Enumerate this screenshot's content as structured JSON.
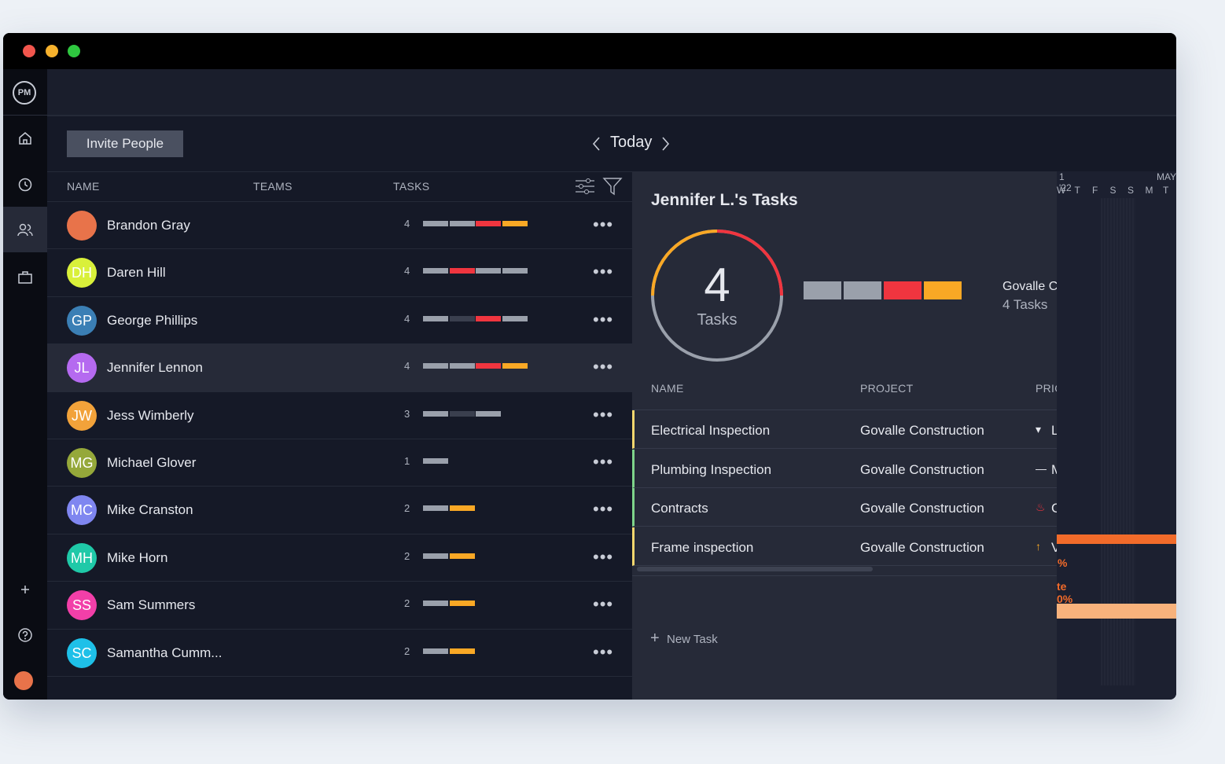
{
  "window": {
    "controls": [
      "#f2564d",
      "#f7b22d",
      "#2fc840"
    ]
  },
  "sidebar": {
    "logo": "PM"
  },
  "toolbar": {
    "invite_button": "Invite People",
    "date_nav": "Today"
  },
  "people_table": {
    "columns": [
      "NAME",
      "TEAMS",
      "TASKS"
    ],
    "rows": [
      {
        "initials": null,
        "color": "#e8734a",
        "name": "Brandon Gray",
        "tasks": 4,
        "segments": [
          "#9aa0ab",
          "#9aa0ab",
          "#f0353f",
          "#f9a825"
        ]
      },
      {
        "initials": "DH",
        "color": "#d9f03a",
        "name": "Daren Hill",
        "tasks": 4,
        "segments": [
          "#9aa0ab",
          "#f0353f",
          "#9aa0ab",
          "#9aa0ab"
        ]
      },
      {
        "initials": "GP",
        "color": "#3b7fb5",
        "name": "George Phillips",
        "tasks": 4,
        "segments": [
          "#9aa0ab",
          "#3a3f4e",
          "#f0353f",
          "#9aa0ab"
        ]
      },
      {
        "initials": "JL",
        "color": "#b56af0",
        "name": "Jennifer Lennon",
        "tasks": 4,
        "segments": [
          "#9aa0ab",
          "#9aa0ab",
          "#f0353f",
          "#f9a825"
        ]
      },
      {
        "initials": "JW",
        "color": "#f2a23a",
        "name": "Jess Wimberly",
        "tasks": 3,
        "segments": [
          "#9aa0ab",
          "#3a3f4e",
          "#9aa0ab"
        ]
      },
      {
        "initials": "MG",
        "color": "#95a83a",
        "name": "Michael Glover",
        "tasks": 1,
        "segments": [
          "#9aa0ab"
        ]
      },
      {
        "initials": "MC",
        "color": "#7f86f0",
        "name": "Mike Cranston",
        "tasks": 2,
        "segments": [
          "#9aa0ab",
          "#f9a825"
        ]
      },
      {
        "initials": "MH",
        "color": "#1fc9a8",
        "name": "Mike Horn",
        "tasks": 2,
        "segments": [
          "#9aa0ab",
          "#f9a825"
        ]
      },
      {
        "initials": "SS",
        "color": "#f23fa8",
        "name": "Sam Summers",
        "tasks": 2,
        "segments": [
          "#9aa0ab",
          "#f9a825"
        ]
      },
      {
        "initials": "SC",
        "color": "#1ec0e8",
        "name": "Samantha Cumm...",
        "tasks": 2,
        "segments": [
          "#9aa0ab",
          "#f9a825"
        ]
      }
    ],
    "selected_row": 3
  },
  "task_panel": {
    "title": "Jennifer L.'s Tasks",
    "count": 4,
    "count_label": "Tasks",
    "segments": [
      "#9aa0ab",
      "#9aa0ab",
      "#f0353f",
      "#f9a825"
    ],
    "project": "Govalle C",
    "project_tasks": "4 Tasks",
    "columns": [
      "NAME",
      "PROJECT",
      "PRIC"
    ],
    "rows": [
      {
        "name": "Electrical Inspection",
        "project": "Govalle Construction",
        "priority": "L",
        "color": "#f5d76e"
      },
      {
        "name": "Plumbing Inspection",
        "project": "Govalle Construction",
        "priority": "M",
        "color": "#7ed48a"
      },
      {
        "name": "Contracts",
        "project": "Govalle Construction",
        "priority": "C",
        "color": "#7ed48a"
      },
      {
        "name": "Frame inspection",
        "project": "Govalle Construction",
        "priority": "V",
        "color": "#f5d76e"
      }
    ],
    "new_task": "New Task"
  },
  "gantt": {
    "period_start": "1 '22",
    "period_end": "MAY",
    "days": [
      "W",
      "T",
      "F",
      "S",
      "S",
      "M",
      "T"
    ],
    "labels": [
      "%",
      "te 0%"
    ]
  }
}
